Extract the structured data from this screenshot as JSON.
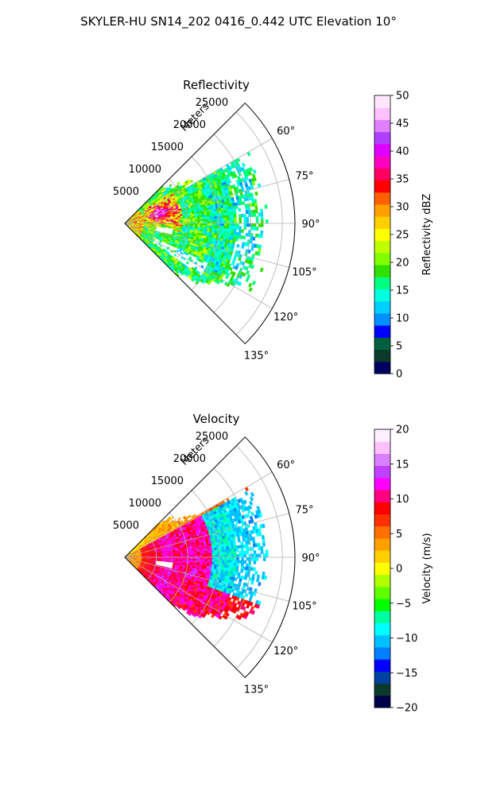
{
  "figure": {
    "title": "SKYLER-HU  SN14_202  0416_0.442 UTC Elevation 10°"
  },
  "chart_data": [
    {
      "type": "heatmap",
      "title": "Reflectivity",
      "radial_axis_label": "Meters",
      "radial_ticks": [
        5000,
        10000,
        15000,
        20000,
        25000
      ],
      "radial_range": [
        0,
        27000
      ],
      "azimuth_ticks": [
        60,
        75,
        90,
        105,
        120,
        135
      ],
      "azimuth_range": [
        45,
        135
      ],
      "colorbar": {
        "label": "Reflectivity dBZ",
        "range": [
          0,
          50
        ],
        "ticks": [
          0,
          5,
          10,
          15,
          20,
          25,
          30,
          35,
          40,
          45,
          50
        ]
      },
      "dominant_values": "mostly 15–25 dBZ green, cores 35–45 dBZ near range 3000–8000 m",
      "grid": true
    },
    {
      "type": "heatmap",
      "title": "Velocity",
      "radial_axis_label": "Meters",
      "radial_ticks": [
        5000,
        10000,
        15000,
        20000,
        25000
      ],
      "radial_range": [
        0,
        27000
      ],
      "azimuth_ticks": [
        60,
        75,
        90,
        105,
        120,
        135
      ],
      "azimuth_range": [
        45,
        135
      ],
      "colorbar": {
        "label": "Velocity (m/s)",
        "range": [
          -20,
          20
        ],
        "ticks": [
          -20,
          -15,
          -10,
          -5,
          0,
          5,
          10,
          15,
          20
        ]
      },
      "dominant_values": "positive 0–15 m/s near range, negative about -10 m/s beyond 12000 m",
      "grid": true
    }
  ],
  "colors": {
    "refl_scale": [
      "#000060",
      "#0a3a2a",
      "#006040",
      "#0000ff",
      "#0090ff",
      "#00d0ff",
      "#00ffe0",
      "#00ff80",
      "#30e000",
      "#80ff00",
      "#c0ff00",
      "#ffff00",
      "#ffd000",
      "#ffa000",
      "#ff6000",
      "#ff0000",
      "#ff0060",
      "#ff00c0",
      "#e000ff",
      "#b040ff",
      "#e080ff",
      "#ffc0ff",
      "#ffe8ff"
    ],
    "vel_scale": [
      "#00004a",
      "#0a3a2a",
      "#0040a0",
      "#0000ff",
      "#0080ff",
      "#00c0ff",
      "#00ffff",
      "#00ffa0",
      "#00ff00",
      "#60ff00",
      "#b0ff00",
      "#ffff00",
      "#ffd000",
      "#ffa000",
      "#ff7000",
      "#ff3000",
      "#ff0000",
      "#ff0080",
      "#ff00ff",
      "#c040ff",
      "#d880ff",
      "#ffc0ff",
      "#fff0ff"
    ]
  }
}
